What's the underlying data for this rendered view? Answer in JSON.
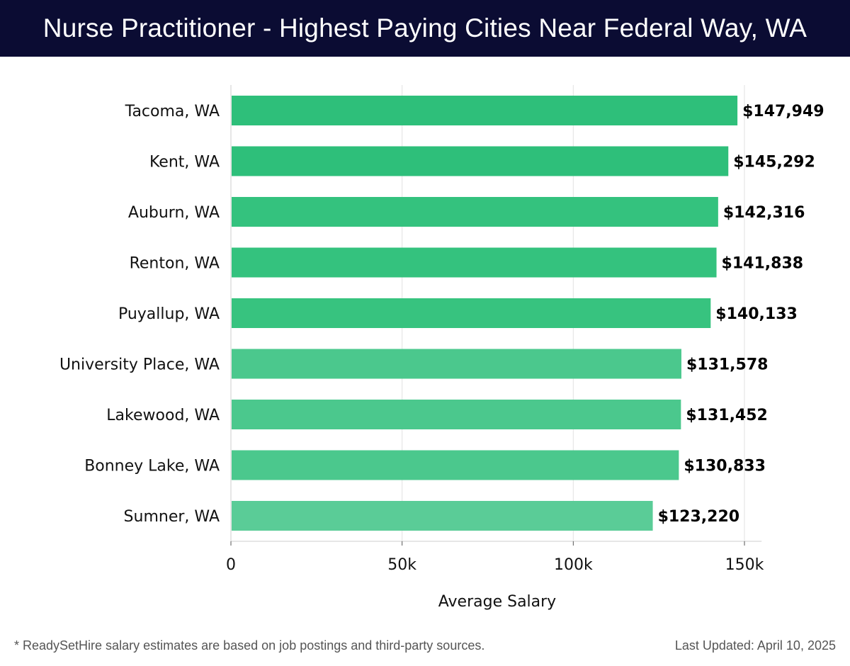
{
  "header": {
    "title": "Nurse Practitioner - Highest Paying Cities Near Federal Way, WA"
  },
  "chart_data": {
    "type": "bar",
    "orientation": "horizontal",
    "categories": [
      "Tacoma, WA",
      "Kent, WA",
      "Auburn, WA",
      "Renton, WA",
      "Puyallup, WA",
      "University Place, WA",
      "Lakewood, WA",
      "Bonney Lake, WA",
      "Sumner, WA"
    ],
    "values": [
      147949,
      145292,
      142316,
      141838,
      140133,
      131578,
      131452,
      130833,
      123220
    ],
    "value_labels": [
      "$147,949",
      "$145,292",
      "$142,316",
      "$141,838",
      "$140,133",
      "$131,578",
      "$131,452",
      "$130,833",
      "$123,220"
    ],
    "bar_colors": [
      "#2ebf7a",
      "#2ebf7a",
      "#34c27e",
      "#34c27e",
      "#37c37f",
      "#4bc88d",
      "#4bc88d",
      "#4bc88d",
      "#5acc97"
    ],
    "xlabel": "Average Salary",
    "ylabel": "",
    "xlim": [
      0,
      155000
    ],
    "xticks": [
      0,
      50000,
      100000,
      150000
    ],
    "xtick_labels": [
      "0",
      "50k",
      "100k",
      "150k"
    ],
    "grid": true
  },
  "footer": {
    "note": "* ReadySetHire salary estimates are based on job postings and third-party sources.",
    "updated": "Last Updated: April 10, 2025"
  },
  "colors": {
    "header_bg": "#0b0c33",
    "grid": "#e2e2e2",
    "axis": "#cccccc",
    "text": "#111111"
  }
}
